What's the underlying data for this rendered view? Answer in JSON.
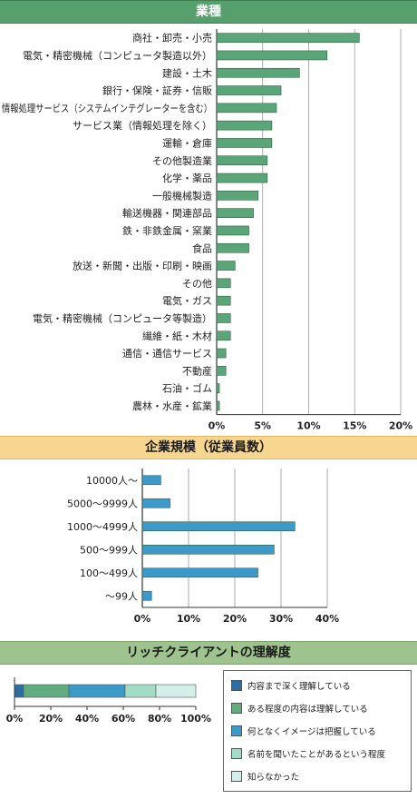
{
  "chart_data": [
    {
      "type": "bar",
      "orientation": "horizontal",
      "title": "業種",
      "categories": [
        "商社・卸売・小売",
        "電気・精密機械（コンピュータ製造以外）",
        "建設・土木",
        "銀行・保険・証券・信販",
        "情報処理サービス（システムインテグレーターを含む）",
        "サービス業（情報処理を除く）",
        "運輸・倉庫",
        "その他製造業",
        "化学・薬品",
        "一般機械製造",
        "輸送機器・関連部品",
        "鉄・非鉄金属・窯業",
        "食品",
        "放送・新聞・出版・印刷・映画",
        "その他",
        "電気・ガス",
        "電気・精密機械（コンピュータ等製造）",
        "繊維・紙・木材",
        "通信・通信サービス",
        "不動産",
        "石油・ゴム",
        "農林・水産・鉱業"
      ],
      "values": [
        15.5,
        12.0,
        9.0,
        7.0,
        6.5,
        6.0,
        6.0,
        5.5,
        5.5,
        4.5,
        4.0,
        3.5,
        3.5,
        2.0,
        1.5,
        1.5,
        1.5,
        1.5,
        1.0,
        1.0,
        0.3,
        0.3
      ],
      "xlim": [
        0,
        20
      ],
      "xticks": [
        "0%",
        "5%",
        "10%",
        "15%",
        "20%"
      ],
      "grid": true,
      "color": "#5aa678"
    },
    {
      "type": "bar",
      "orientation": "horizontal",
      "title": "企業規模（従業員数）",
      "categories": [
        "10000人～",
        "5000～9999人",
        "1000～4999人",
        "500～999人",
        "100～499人",
        "～99人"
      ],
      "values": [
        4.0,
        6.0,
        33.0,
        28.5,
        25.0,
        2.0
      ],
      "xlim": [
        0,
        40
      ],
      "xticks": [
        "0%",
        "10%",
        "20%",
        "30%",
        "40%"
      ],
      "grid": true,
      "color": "#3d99c8"
    },
    {
      "type": "bar",
      "stacked": true,
      "orientation": "horizontal",
      "title": "リッチクライアントの理解度",
      "xlim": [
        0,
        100
      ],
      "xticks": [
        "0%",
        "20%",
        "40%",
        "60%",
        "80%",
        "100%"
      ],
      "series": [
        {
          "name": "内容まで深く理解している",
          "value": 5,
          "color": "#2a6ea3"
        },
        {
          "name": "ある程度の内容は理解している",
          "value": 25,
          "color": "#62ad80"
        },
        {
          "name": "何となくイメージは把握している",
          "value": 31,
          "color": "#3d99c8"
        },
        {
          "name": "名前を聞いたことがあるという程度",
          "value": 17,
          "color": "#a3dcc6"
        },
        {
          "name": "知らなかった",
          "value": 22,
          "color": "#d3efe9"
        }
      ],
      "legend": "right"
    }
  ]
}
